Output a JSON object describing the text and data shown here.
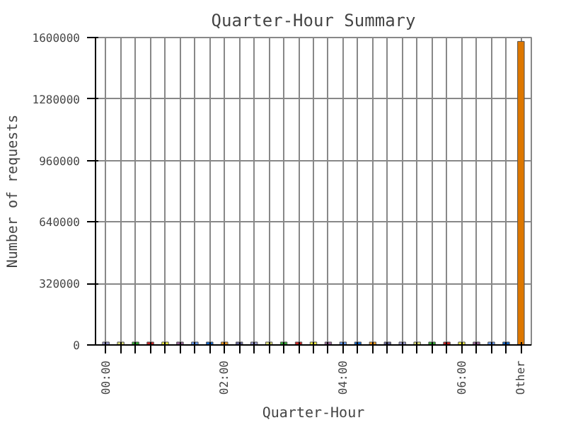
{
  "chart_data": {
    "type": "bar",
    "title": "Quarter-Hour Summary",
    "xlabel": "Quarter-Hour",
    "ylabel": "Number of requests",
    "categories": [
      "00:00",
      null,
      null,
      null,
      null,
      null,
      null,
      null,
      "02:00",
      null,
      null,
      null,
      null,
      null,
      null,
      null,
      "04:00",
      null,
      null,
      null,
      null,
      null,
      null,
      null,
      "06:00",
      null,
      null,
      null,
      "Other"
    ],
    "values": [
      15000,
      15000,
      15000,
      15000,
      15000,
      15000,
      15000,
      15000,
      15000,
      15000,
      15000,
      15000,
      15000,
      15000,
      15000,
      15000,
      15000,
      15000,
      15000,
      15000,
      15000,
      15000,
      15000,
      15000,
      15000,
      15000,
      15000,
      15000,
      1580000
    ],
    "colors": [
      "#9999cc",
      "#dddd77",
      "#33aa33",
      "#cc2222",
      "#eeee44",
      "#996699",
      "#6699ee",
      "#1166cc",
      "#ee9922",
      "#666699",
      "#9999cc",
      "#dddd77",
      "#33aa33",
      "#cc2222",
      "#eeee44",
      "#996699",
      "#6699ee",
      "#1166cc",
      "#ee9922",
      "#666699",
      "#9999cc",
      "#dddd77",
      "#33aa33",
      "#cc2222",
      "#eeee44",
      "#996699",
      "#6699ee",
      "#1166cc",
      "#dd7700"
    ],
    "ylim": [
      0,
      1600000
    ],
    "yticks": [
      0,
      320000,
      640000,
      960000,
      1280000,
      1600000
    ],
    "grid": true
  }
}
